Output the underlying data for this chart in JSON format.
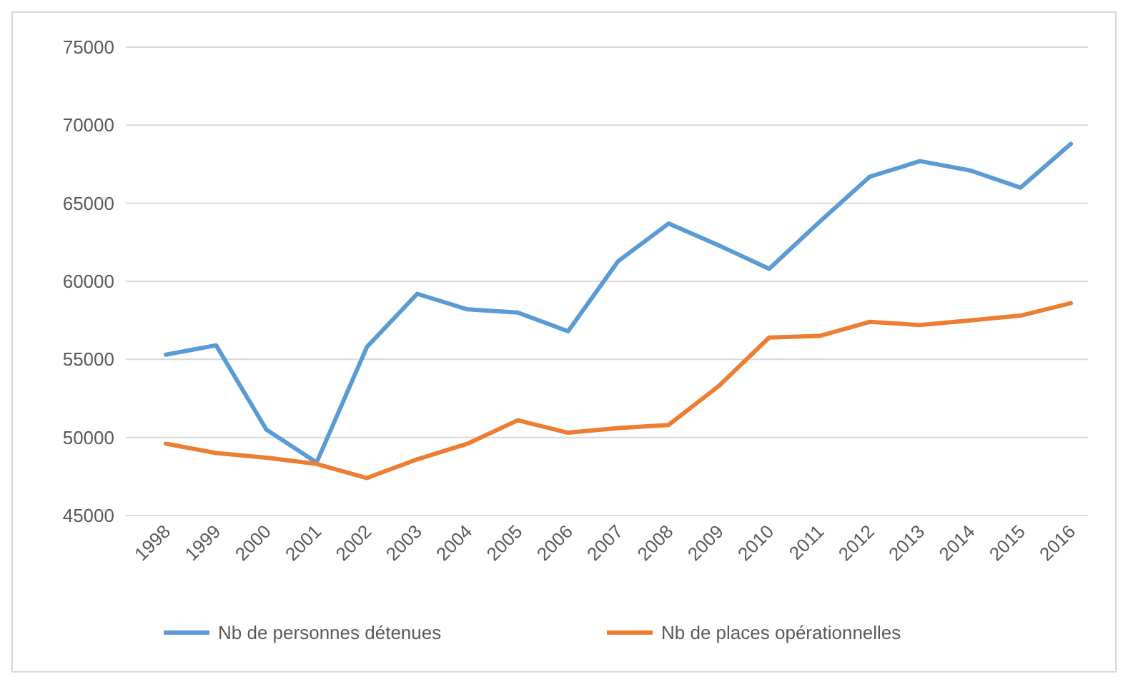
{
  "chart_data": {
    "type": "line",
    "categories": [
      "1998",
      "1999",
      "2000",
      "2001",
      "2002",
      "2003",
      "2004",
      "2005",
      "2006",
      "2007",
      "2008",
      "2009",
      "2010",
      "2011",
      "2012",
      "2013",
      "2014",
      "2015",
      "2016"
    ],
    "series": [
      {
        "name": "Nb de personnes détenues",
        "color": "#5b9bd5",
        "values": [
          55300,
          55900,
          50500,
          48400,
          55800,
          59200,
          58200,
          58000,
          56800,
          61300,
          63700,
          62300,
          60800,
          63800,
          66700,
          67700,
          67100,
          66000,
          68800
        ]
      },
      {
        "name": "Nb de places opérationnelles",
        "color": "#ed7d31",
        "values": [
          49600,
          49000,
          48700,
          48300,
          47400,
          48600,
          49600,
          51100,
          50300,
          50600,
          50800,
          53300,
          56400,
          56500,
          57400,
          57200,
          57500,
          57800,
          58600
        ]
      }
    ],
    "ylim": [
      45000,
      75000
    ],
    "yticks": [
      45000,
      50000,
      55000,
      60000,
      65000,
      70000,
      75000
    ],
    "grid": "y",
    "legend": "bottom",
    "marker": "none",
    "line_style": "solid"
  }
}
